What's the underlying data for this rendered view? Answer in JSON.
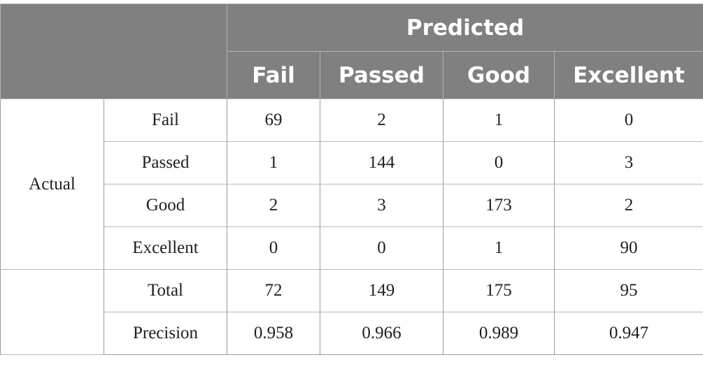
{
  "table": {
    "predicted_header": "Predicted",
    "predicted_classes": [
      "Fail",
      "Passed",
      "Good",
      "Excellent"
    ],
    "actual_label": "Actual",
    "rows": [
      {
        "label": "Fail",
        "values": [
          "69",
          "2",
          "1",
          "0"
        ]
      },
      {
        "label": "Passed",
        "values": [
          "1",
          "144",
          "0",
          "3"
        ]
      },
      {
        "label": "Good",
        "values": [
          "2",
          "3",
          "173",
          "2"
        ]
      },
      {
        "label": "Excellent",
        "values": [
          "0",
          "0",
          "1",
          "90"
        ]
      }
    ],
    "summary_rows": [
      {
        "label": "Total",
        "values": [
          "72",
          "149",
          "175",
          "95"
        ]
      },
      {
        "label": "Precision",
        "values": [
          "0.958",
          "0.966",
          "0.989",
          "0.947"
        ]
      }
    ]
  },
  "colors": {
    "header_background": "#808080",
    "header_text": "#ffffff",
    "body_text": "#1f1f1f"
  }
}
